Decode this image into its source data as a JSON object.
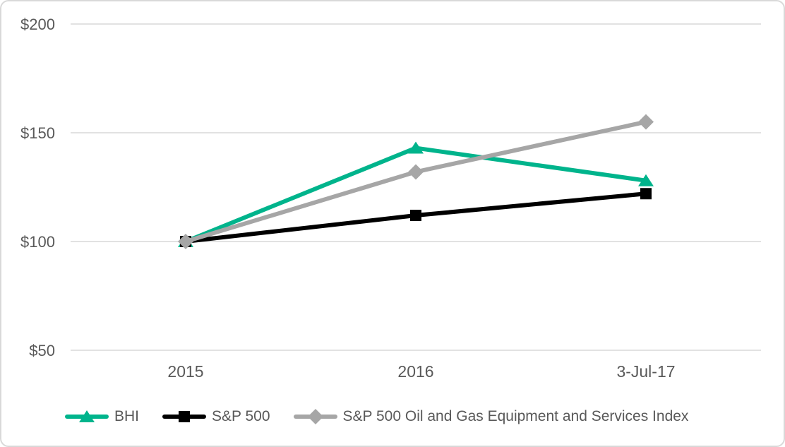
{
  "chart": {
    "background": "#ffffff",
    "frame_border_color": "#d9d9d9",
    "gridline_color": "#d9d9d9",
    "axis_text_color": "#595959"
  },
  "chart_data": {
    "type": "line",
    "title": "",
    "categories": [
      "2015",
      "2016",
      "3-Jul-17"
    ],
    "series": [
      {
        "name": "BHI",
        "values": [
          100,
          143,
          128
        ],
        "color": "#00b48c",
        "marker": "triangle"
      },
      {
        "name": "S&P 500",
        "values": [
          100,
          112,
          122
        ],
        "color": "#000000",
        "marker": "square"
      },
      {
        "name": "S&P 500 Oil and Gas Equipment and Services Index",
        "values": [
          100,
          132,
          155
        ],
        "color": "#a6a6a6",
        "marker": "diamond"
      }
    ],
    "y_ticks": [
      {
        "value": 200,
        "label": "$200"
      },
      {
        "value": 150,
        "label": "$150"
      },
      {
        "value": 100,
        "label": "$100"
      },
      {
        "value": 50,
        "label": "$50"
      }
    ],
    "ylim": [
      50,
      200
    ],
    "grid": "horizontal",
    "legend_position": "bottom"
  }
}
